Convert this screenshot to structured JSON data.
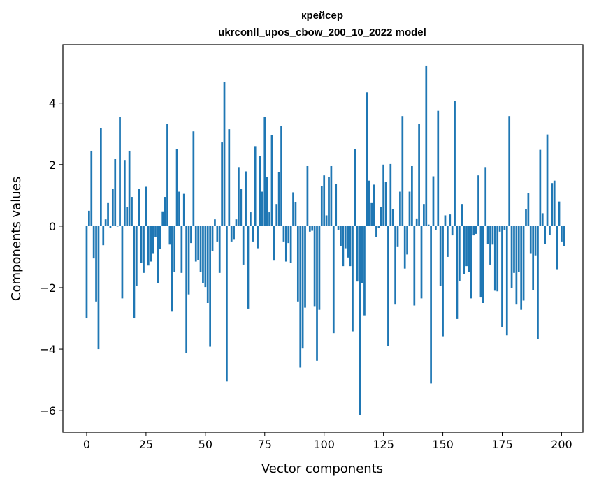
{
  "chart_data": {
    "type": "bar",
    "title": "крейсер",
    "subtitle": "ukrconll_upos_cbow_200_10_2022 model",
    "xlabel": "Vector components",
    "ylabel": "Components values",
    "xlim": [
      -10,
      209
    ],
    "ylim": [
      -6.7,
      5.9
    ],
    "xticks": [
      0,
      25,
      50,
      75,
      100,
      125,
      150,
      175,
      200
    ],
    "yticks": [
      -6,
      -4,
      -2,
      0,
      2,
      4
    ],
    "ytick_labels": [
      "−6",
      "−4",
      "−2",
      "0",
      "2",
      "4"
    ],
    "grid": false,
    "bar_color": "#1f77b4",
    "values": [
      -3.0,
      0.5,
      2.45,
      -1.05,
      -2.45,
      -4.0,
      3.18,
      -0.62,
      0.22,
      0.75,
      -0.05,
      1.22,
      2.18,
      0.0,
      3.55,
      -2.35,
      2.15,
      0.62,
      2.45,
      0.95,
      -3.0,
      -1.95,
      1.22,
      -1.2,
      -1.52,
      1.28,
      -1.28,
      -1.15,
      -0.9,
      -0.35,
      -1.85,
      -0.75,
      0.48,
      0.95,
      3.32,
      -0.6,
      -2.78,
      -1.5,
      2.5,
      1.12,
      -1.52,
      1.05,
      -4.12,
      -2.22,
      -0.55,
      3.08,
      -1.15,
      -1.1,
      -1.5,
      -1.85,
      -1.98,
      -2.5,
      -3.92,
      -0.8,
      0.22,
      -0.5,
      -1.52,
      2.72,
      4.68,
      -5.05,
      3.15,
      -0.5,
      -0.42,
      0.22,
      1.92,
      1.2,
      -1.25,
      1.78,
      -2.68,
      0.45,
      -0.5,
      2.6,
      -0.72,
      2.28,
      1.12,
      3.55,
      1.6,
      0.45,
      2.95,
      -1.12,
      0.72,
      1.75,
      3.25,
      -0.5,
      -1.15,
      -0.55,
      -1.2,
      1.1,
      0.78,
      -2.45,
      -4.6,
      -3.98,
      -2.65,
      1.95,
      -0.18,
      -0.15,
      -2.6,
      -4.38,
      -2.72,
      1.3,
      1.65,
      0.35,
      1.6,
      1.95,
      -3.48,
      1.38,
      -0.12,
      -0.65,
      -1.3,
      -0.72,
      -1.02,
      -1.3,
      -3.42,
      2.5,
      -1.8,
      -6.15,
      -1.85,
      -2.9,
      4.35,
      1.48,
      0.75,
      1.35,
      -0.35,
      -0.05,
      0.62,
      2.0,
      1.45,
      -3.9,
      2.02,
      0.55,
      -2.55,
      -0.68,
      1.12,
      3.58,
      -1.38,
      -0.92,
      1.12,
      1.95,
      -2.58,
      0.25,
      3.32,
      -2.35,
      0.72,
      5.22,
      0.05,
      -5.12,
      1.62,
      -0.12,
      3.75,
      -1.95,
      -3.58,
      0.35,
      -1.0,
      0.38,
      -0.3,
      4.08,
      -3.02,
      -1.78,
      0.72,
      -1.55,
      -1.3,
      -1.5,
      -2.35,
      -0.3,
      -0.25,
      1.65,
      -2.32,
      -2.5,
      1.92,
      -0.58,
      -1.25,
      -0.6,
      -2.1,
      -2.12,
      -0.18,
      -3.28,
      -0.12,
      -3.55,
      3.58,
      -2.0,
      -1.52,
      -2.55,
      -1.48,
      -2.72,
      -2.42,
      0.55,
      1.08,
      -0.9,
      -2.08,
      -0.95,
      -3.68,
      2.48,
      0.42,
      -0.58,
      2.98,
      -0.28,
      1.4,
      1.48,
      -1.4,
      0.8,
      -0.5,
      -0.65
    ]
  }
}
